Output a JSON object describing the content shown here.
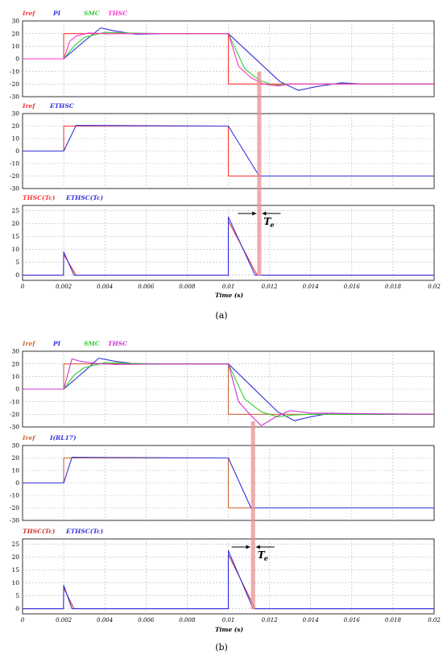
{
  "chart_data": [
    {
      "id": "a1",
      "type": "line",
      "figure": "a",
      "xlim": [
        0,
        0.02
      ],
      "ylim": [
        -30,
        30
      ],
      "yticks": [
        "30",
        "20",
        "10",
        "0",
        "-10",
        "-20",
        "-30"
      ],
      "grid": true,
      "legend_position": "top-left",
      "series": [
        {
          "name": "Iref",
          "color": "#ff3333",
          "x": [
            0,
            0.002,
            0.002,
            0.01,
            0.01,
            0.02
          ],
          "y": [
            0,
            0,
            20,
            20,
            -20,
            -20
          ]
        },
        {
          "name": "PI",
          "color": "#3333dd",
          "x": [
            0,
            0.002,
            0.003,
            0.0038,
            0.0045,
            0.0055,
            0.007,
            0.01,
            0.0125,
            0.0134,
            0.0143,
            0.0155,
            0.0165,
            0.018,
            0.02
          ],
          "y": [
            0,
            0,
            14,
            24.5,
            22,
            19.5,
            20,
            20,
            -18,
            -25,
            -22,
            -19,
            -20,
            -20,
            -20
          ]
        },
        {
          "name": "SMC",
          "color": "#33cc33",
          "x": [
            0,
            0.002,
            0.0025,
            0.003,
            0.004,
            0.005,
            0.007,
            0.01,
            0.0108,
            0.0115,
            0.0122,
            0.013,
            0.014,
            0.02
          ],
          "y": [
            0,
            0,
            10,
            17,
            21,
            20.5,
            20,
            20,
            -8,
            -17,
            -21,
            -20,
            -20,
            -20
          ]
        },
        {
          "name": "THSC",
          "color": "#ff33cc",
          "x": [
            0,
            0.002,
            0.0023,
            0.0026,
            0.0032,
            0.004,
            0.007,
            0.01,
            0.0105,
            0.0111,
            0.0117,
            0.0124,
            0.013,
            0.014,
            0.02
          ],
          "y": [
            0,
            0,
            14,
            18,
            20.5,
            20,
            20,
            20,
            -6,
            -15,
            -20,
            -21.5,
            -20,
            -20,
            -20
          ]
        }
      ]
    },
    {
      "id": "a2",
      "type": "line",
      "figure": "a",
      "xlim": [
        0,
        0.02
      ],
      "ylim": [
        -30,
        30
      ],
      "yticks": [
        "30",
        "20",
        "10",
        "0",
        "-10",
        "-20",
        "-30"
      ],
      "grid": true,
      "legend_position": "top-left",
      "series": [
        {
          "name": "Iref",
          "color": "#ff3333",
          "x": [
            0,
            0.002,
            0.002,
            0.01,
            0.01,
            0.02
          ],
          "y": [
            0,
            0,
            20,
            20,
            -20,
            -20
          ]
        },
        {
          "name": "ETHSC",
          "color": "#3333dd",
          "x": [
            0,
            0.002,
            0.0026,
            0.01,
            0.0115,
            0.02
          ],
          "y": [
            0,
            0,
            20.5,
            20,
            -20,
            -20
          ]
        }
      ]
    },
    {
      "id": "a3",
      "type": "line",
      "figure": "a",
      "xlim": [
        0,
        0.02
      ],
      "ylim": [
        -2,
        27
      ],
      "yticks": [
        "25",
        "20",
        "15",
        "10",
        "5",
        "0"
      ],
      "grid": true,
      "legend_position": "top-left",
      "series": [
        {
          "name": "THSC(Tc)",
          "color": "#ff3333",
          "x": [
            0,
            0.00199,
            0.002,
            0.0026,
            0.0026,
            0.01,
            0.01,
            0.0114,
            0.0114,
            0.02
          ],
          "y": [
            0,
            0,
            8,
            0,
            0,
            0,
            21,
            0,
            0,
            0
          ]
        },
        {
          "name": "ETHSC(Tc)",
          "color": "#3333dd",
          "x": [
            0,
            0.00199,
            0.002,
            0.0025,
            0.0025,
            0.01,
            0.01,
            0.0113,
            0.0113,
            0.02
          ],
          "y": [
            0,
            0,
            9,
            0,
            0,
            0,
            22.5,
            0,
            0,
            0
          ]
        }
      ]
    },
    {
      "id": "b1",
      "type": "line",
      "figure": "b",
      "xlim": [
        0,
        0.02
      ],
      "ylim": [
        -30,
        30
      ],
      "yticks": [
        "30",
        "20",
        "10",
        "0",
        "-10",
        "-20",
        "-30"
      ],
      "grid": true,
      "legend_position": "top-left",
      "series": [
        {
          "name": "Iref",
          "color": "#cc6633",
          "x": [
            0,
            0.002,
            0.002,
            0.01,
            0.01,
            0.02
          ],
          "y": [
            0,
            0,
            20,
            20,
            -20,
            -20
          ]
        },
        {
          "name": "PI",
          "color": "#3333dd",
          "x": [
            0,
            0.002,
            0.003,
            0.0037,
            0.0045,
            0.0055,
            0.007,
            0.01,
            0.0124,
            0.0132,
            0.014,
            0.015,
            0.016,
            0.02
          ],
          "y": [
            0,
            0,
            14,
            24.5,
            22,
            20,
            20,
            20,
            -18,
            -25,
            -22,
            -19,
            -20,
            -20
          ]
        },
        {
          "name": "SMC",
          "color": "#33cc33",
          "x": [
            0,
            0.002,
            0.0025,
            0.003,
            0.004,
            0.005,
            0.007,
            0.01,
            0.0108,
            0.0116,
            0.0124,
            0.0132,
            0.014,
            0.02
          ],
          "y": [
            0,
            0,
            11,
            17,
            21,
            20.5,
            20,
            20,
            -8,
            -18,
            -22,
            -20.5,
            -20,
            -20
          ]
        },
        {
          "name": "THSC",
          "color": "#cc33cc",
          "x": [
            0,
            0.002,
            0.0024,
            0.0028,
            0.0035,
            0.0045,
            0.007,
            0.01,
            0.0105,
            0.0111,
            0.0116,
            0.0123,
            0.013,
            0.014,
            0.02
          ],
          "y": [
            0,
            0,
            24,
            22,
            20.5,
            19.5,
            20,
            20,
            -10,
            -21,
            -29,
            -22,
            -17,
            -19,
            -20
          ]
        }
      ]
    },
    {
      "id": "b2",
      "type": "line",
      "figure": "b",
      "xlim": [
        0,
        0.02
      ],
      "ylim": [
        -30,
        30
      ],
      "yticks": [
        "30",
        "20",
        "10",
        "0",
        "-10",
        "-20",
        "-30"
      ],
      "grid": true,
      "legend_position": "top-left",
      "series": [
        {
          "name": "Iref",
          "color": "#cc6633",
          "x": [
            0,
            0.002,
            0.002,
            0.01,
            0.01,
            0.02
          ],
          "y": [
            0,
            0,
            20,
            20,
            -20,
            -20
          ]
        },
        {
          "name": "I(RL17)",
          "color": "#3333dd",
          "x": [
            0,
            0.002,
            0.0024,
            0.01,
            0.0111,
            0.02
          ],
          "y": [
            0,
            0,
            20.5,
            20,
            -20,
            -20
          ]
        }
      ]
    },
    {
      "id": "b3",
      "type": "line",
      "figure": "b",
      "xlim": [
        0,
        0.02
      ],
      "ylim": [
        -2,
        27
      ],
      "yticks": [
        "25",
        "20",
        "15",
        "10",
        "5",
        "0"
      ],
      "grid": true,
      "legend_position": "top-left",
      "series": [
        {
          "name": "THSC(Tc)",
          "color": "#cc3333",
          "x": [
            0,
            0.00199,
            0.002,
            0.0025,
            0.0025,
            0.01,
            0.01,
            0.0113,
            0.0113,
            0.02
          ],
          "y": [
            0,
            0,
            8,
            0,
            0,
            0,
            21,
            0,
            0,
            0
          ]
        },
        {
          "name": "ETHSC(Tc)",
          "color": "#3333dd",
          "x": [
            0,
            0.00199,
            0.002,
            0.0024,
            0.0024,
            0.01,
            0.01,
            0.0112,
            0.0112,
            0.02
          ],
          "y": [
            0,
            0,
            9,
            0,
            0,
            0,
            22.5,
            0,
            0,
            0
          ]
        }
      ]
    }
  ],
  "xtick_labels": [
    "0",
    "0.002",
    "0.004",
    "0.006",
    "0.008",
    "0.01",
    "0.012",
    "0.014",
    "0.016",
    "0.018",
    "0.02"
  ],
  "xaxis_title": "Time (s)",
  "te_label": "T",
  "te_sub": "e",
  "captions": {
    "a": "(a)",
    "b": "(b)"
  },
  "highlight": {
    "color": "#e89090"
  }
}
